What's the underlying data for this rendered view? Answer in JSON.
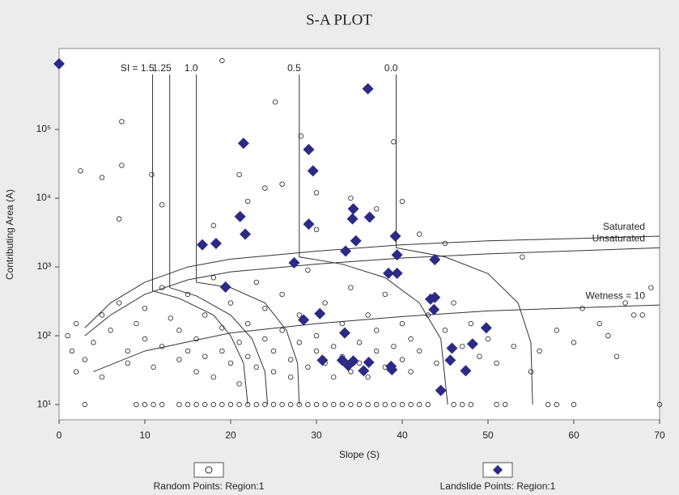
{
  "chart_data": {
    "type": "scatter",
    "title": "S-A PLOT",
    "x_label": "Slope (S)",
    "y_label": "Contributing Area (A)",
    "xlim": [
      0,
      70
    ],
    "xticks": [
      0,
      10,
      20,
      30,
      40,
      50,
      60,
      70
    ],
    "ylim": [
      6,
      1500000
    ],
    "ylog": true,
    "yticks": [
      {
        "value": 10,
        "label": "10¹"
      },
      {
        "value": 100,
        "label": "10²"
      },
      {
        "value": 1000,
        "label": "10³"
      },
      {
        "value": 10000,
        "label": "10⁴"
      },
      {
        "value": 100000,
        "label": "10⁵"
      }
    ],
    "grid": false,
    "series": [
      {
        "name": "Random Points: Region:1",
        "marker": "circle",
        "color": "#222222",
        "x": [
          3,
          9,
          10,
          11,
          12,
          14,
          15,
          16,
          17,
          18,
          19,
          20,
          21,
          22,
          23,
          24,
          25,
          26,
          27,
          28,
          29,
          30,
          31,
          32,
          33,
          34,
          35,
          36,
          37,
          38,
          39,
          40,
          41,
          42,
          43,
          46,
          47,
          48,
          51,
          52,
          57,
          58,
          60,
          70,
          19,
          7.3,
          25.2,
          28.2,
          39,
          7.3,
          2.5,
          5,
          10.8,
          21,
          22,
          24,
          26,
          30,
          34,
          40,
          12,
          37,
          7,
          18,
          30,
          42,
          45,
          54,
          69,
          66,
          61,
          67,
          63,
          58,
          64,
          60,
          56,
          65,
          68,
          1,
          1.5,
          2,
          2,
          3,
          4,
          5,
          5,
          6,
          7,
          8,
          8,
          9,
          10,
          10,
          11,
          12,
          12,
          13,
          14,
          14,
          15,
          15,
          16,
          16,
          17,
          17,
          18,
          18,
          19,
          19,
          20,
          20,
          21,
          21,
          22,
          22,
          23,
          23,
          24,
          24,
          25,
          25,
          26,
          26,
          27,
          27,
          28,
          28,
          29,
          29,
          30,
          30,
          31,
          31,
          32,
          32,
          33,
          33,
          34,
          34,
          35,
          35,
          36,
          36,
          37,
          37,
          38,
          38,
          39,
          40,
          40,
          41,
          41,
          42,
          43,
          44,
          45,
          46,
          47,
          48,
          49,
          50,
          51,
          53,
          55
        ],
        "values": [
          10,
          10,
          10,
          10,
          10,
          10,
          10,
          10,
          10,
          10,
          10,
          10,
          10,
          10,
          10,
          10,
          10,
          10,
          10,
          10,
          10,
          10,
          10,
          10,
          10,
          10,
          10,
          10,
          10,
          10,
          10,
          10,
          10,
          10,
          10,
          10,
          10,
          10,
          10,
          10,
          10,
          10,
          10,
          10,
          1000000,
          130000,
          250000,
          80000,
          66000,
          30000,
          25000,
          20000,
          22000,
          22000,
          9000,
          14000,
          16000,
          12000,
          10000,
          9000,
          8000,
          7000,
          5000,
          4000,
          3500,
          3000,
          2200,
          1400,
          500,
          300,
          250,
          200,
          150,
          120,
          100,
          80,
          60,
          50,
          200,
          100,
          60,
          150,
          30,
          45,
          80,
          25,
          200,
          120,
          300,
          60,
          40,
          150,
          90,
          250,
          35,
          500,
          70,
          180,
          45,
          120,
          400,
          60,
          30,
          90,
          200,
          50,
          700,
          25,
          130,
          60,
          40,
          300,
          80,
          20,
          150,
          50,
          600,
          35,
          90,
          250,
          30,
          60,
          120,
          400,
          45,
          25,
          80,
          200,
          35,
          900,
          60,
          100,
          40,
          300,
          70,
          25,
          150,
          50,
          30,
          500,
          80,
          40,
          200,
          25,
          60,
          120,
          35,
          400,
          70,
          45,
          150,
          90,
          30,
          60,
          200,
          40,
          120,
          300,
          70,
          150,
          50,
          90,
          40,
          70,
          30
        ]
      },
      {
        "name": "Landslide Points: Region:1",
        "marker": "diamond",
        "color": "#2b2b86",
        "x": [
          0,
          36,
          21.5,
          29.1,
          29.6,
          21.1,
          21.7,
          16.7,
          18.3,
          29.1,
          34.3,
          34.2,
          36.2,
          34.6,
          33.4,
          39.2,
          39.4,
          27.4,
          38.4,
          39.4,
          43.8,
          19.4,
          30.4,
          28.5,
          43.3,
          43.8,
          43.7,
          49.8,
          33.3,
          48.2,
          30.7,
          33,
          33.7,
          34.3,
          35.5,
          36.1,
          38.7,
          45.8,
          45.6,
          47.4,
          44.5,
          38.8
        ],
        "values": [
          900000,
          390000,
          63000,
          51000,
          25000,
          5400,
          3000,
          2100,
          2200,
          4200,
          7000,
          5000,
          5300,
          2400,
          1700,
          2800,
          1500,
          1150,
          810,
          810,
          1280,
          510,
          210,
          170,
          340,
          360,
          240,
          130,
          110,
          76,
          44,
          44,
          37,
          43,
          31,
          41,
          36,
          66,
          44,
          31,
          16,
          32
        ]
      }
    ],
    "curves": [
      {
        "name": "Saturated",
        "x": [
          3,
          6,
          10,
          15,
          20,
          30,
          40,
          50,
          70
        ],
        "values": [
          130,
          300,
          600,
          1000,
          1300,
          1700,
          2100,
          2400,
          2800
        ]
      },
      {
        "name": "Unsaturated",
        "x": [
          3,
          6,
          10,
          15,
          20,
          30,
          40,
          50,
          70
        ],
        "values": [
          100,
          200,
          400,
          650,
          850,
          1100,
          1350,
          1550,
          1900
        ]
      },
      {
        "name": "Wetness = 10",
        "x": [
          4,
          10,
          20,
          30,
          40,
          50,
          70
        ],
        "values": [
          30,
          60,
          110,
          150,
          190,
          230,
          280
        ]
      }
    ],
    "si_lines": [
      {
        "label": "SI = 1.5",
        "x": [
          10.9,
          10.9,
          14,
          18,
          20,
          21.5,
          22
        ],
        "values": [
          630000,
          450,
          350,
          200,
          100,
          40,
          10
        ]
      },
      {
        "label": "1.25",
        "x": [
          12.9,
          12.9,
          16,
          20,
          22.5,
          24,
          24.3
        ],
        "values": [
          630000,
          500,
          380,
          200,
          90,
          30,
          10
        ]
      },
      {
        "label": "1.0",
        "x": [
          16,
          16,
          20,
          24,
          26.5,
          27.8,
          28
        ],
        "values": [
          630000,
          600,
          500,
          300,
          120,
          40,
          10
        ]
      },
      {
        "label": "0.5",
        "x": [
          28,
          28,
          33,
          38,
          42,
          44.5,
          45.3
        ],
        "values": [
          630000,
          1400,
          1100,
          700,
          300,
          90,
          10
        ]
      },
      {
        "label": "0.0",
        "x": [
          39.3,
          39.3,
          45,
          50,
          53.5,
          55,
          55.2
        ],
        "values": [
          630000,
          1900,
          1400,
          800,
          300,
          80,
          10
        ]
      }
    ]
  }
}
